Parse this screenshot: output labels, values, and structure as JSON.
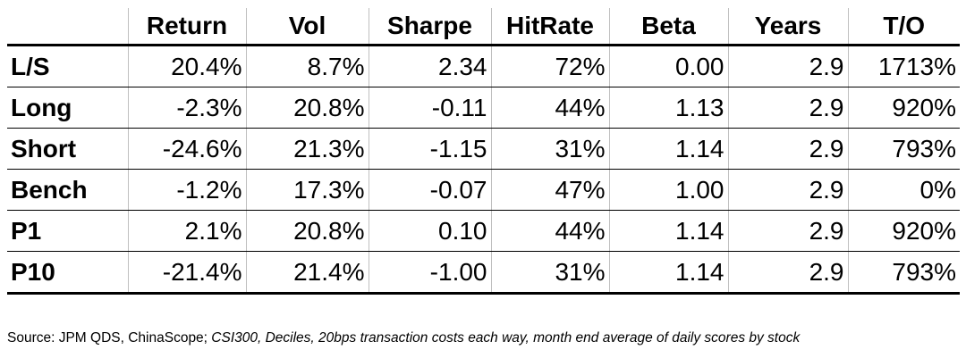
{
  "table": {
    "columns": [
      "",
      "Return",
      "Vol",
      "Sharpe",
      "HitRate",
      "Beta",
      "Years",
      "T/O"
    ],
    "rows": [
      {
        "label": "L/S",
        "values": [
          "20.4%",
          "8.7%",
          "2.34",
          "72%",
          "0.00",
          "2.9",
          "1713%"
        ]
      },
      {
        "label": "Long",
        "values": [
          "-2.3%",
          "20.8%",
          "-0.11",
          "44%",
          "1.13",
          "2.9",
          "920%"
        ]
      },
      {
        "label": "Short",
        "values": [
          "-24.6%",
          "21.3%",
          "-1.15",
          "31%",
          "1.14",
          "2.9",
          "793%"
        ]
      },
      {
        "label": "Bench",
        "values": [
          "-1.2%",
          "17.3%",
          "-0.07",
          "47%",
          "1.00",
          "2.9",
          "0%"
        ]
      },
      {
        "label": "P1",
        "values": [
          "2.1%",
          "20.8%",
          "0.10",
          "44%",
          "1.14",
          "2.9",
          "920%"
        ]
      },
      {
        "label": "P10",
        "values": [
          "-21.4%",
          "21.4%",
          "-1.00",
          "31%",
          "1.14",
          "2.9",
          "793%"
        ]
      }
    ]
  },
  "source": {
    "plain": "Source: JPM QDS, ChinaScope; ",
    "italic": "CSI300, Deciles, 20bps transaction costs each way, month end average of daily scores by stock"
  }
}
